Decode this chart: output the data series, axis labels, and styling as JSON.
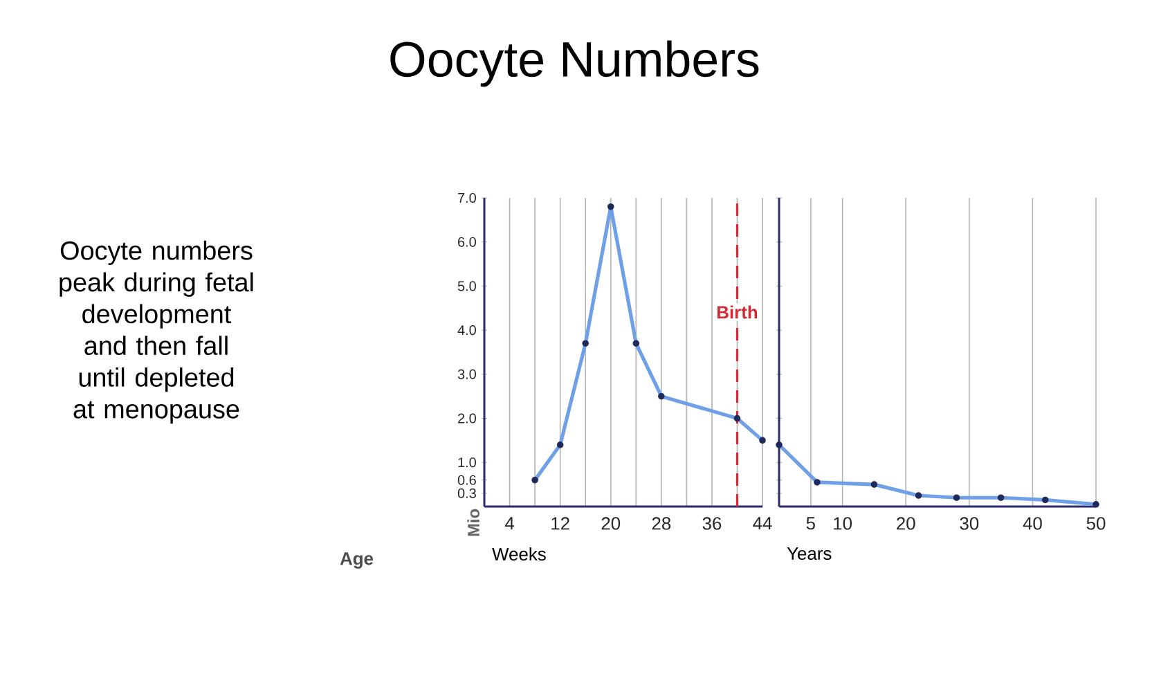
{
  "chart_data": [
    {
      "type": "line",
      "title": "Oocyte Numbers",
      "xlabel": "Weeks",
      "ylabel": "Mio",
      "annotations": [
        "Oocyte numbers peak during fetal development and then fall until depleted at menopause",
        "Age"
      ],
      "x": [
        8,
        12,
        16,
        20,
        24,
        28,
        40,
        44
      ],
      "values": [
        0.6,
        1.4,
        3.7,
        6.8,
        3.7,
        2.5,
        2.0,
        1.5
      ],
      "color": "#6f9fe6",
      "marker": "circle",
      "grid": "x",
      "xlim": [
        0,
        44
      ],
      "xticks": [
        4,
        {
          "value": 8,
          "label": null
        },
        12,
        {
          "value": 16,
          "label": null
        },
        20,
        {
          "value": 24,
          "label": null
        },
        28,
        {
          "value": 32,
          "label": null
        },
        36,
        {
          "value": 40,
          "label": null
        },
        44
      ],
      "ylim": [
        0,
        7
      ],
      "yticks": [
        0.3,
        0.6,
        {
          "value": 1,
          "label": "1.0"
        },
        {
          "value": 2,
          "label": "2.0"
        },
        {
          "value": 3,
          "label": "3.0"
        },
        {
          "value": 4,
          "label": "4.0"
        },
        {
          "value": 5,
          "label": "5.0"
        },
        {
          "value": 6,
          "label": "6.0"
        },
        {
          "value": 7,
          "label": "7.0"
        }
      ],
      "ref_lines": [
        {
          "axis": "x",
          "value": 40,
          "label": "Birth",
          "color": "#d42a35",
          "line_style": "dashed"
        }
      ]
    },
    {
      "type": "line",
      "xlabel": "Years",
      "tick_labels": "x",
      "x": [
        0,
        6,
        15,
        22,
        28,
        35,
        42,
        50
      ],
      "values": [
        1.4,
        0.55,
        0.5,
        0.25,
        0.2,
        0.2,
        0.15,
        0.05
      ],
      "color": "#6f9fe6",
      "marker": "circle",
      "grid": "x",
      "xlim": [
        0,
        50
      ],
      "xticks": [
        5,
        10,
        20,
        30,
        40,
        50
      ],
      "ylim": [
        0,
        7
      ],
      "yticks": [
        0.3,
        0.6,
        1,
        2,
        3,
        4,
        5,
        6,
        7
      ]
    }
  ]
}
